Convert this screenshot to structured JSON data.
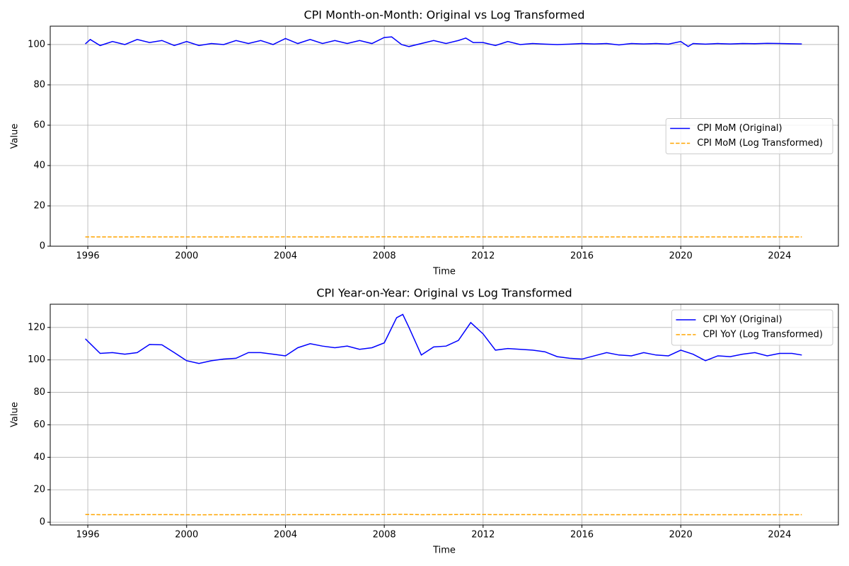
{
  "chart_data": [
    {
      "type": "line",
      "title": "CPI Month-on-Month: Original vs Log Transformed",
      "x_label": "Time",
      "y_label": "Value",
      "x": [
        1995.9,
        1996.1,
        1996.5,
        1997,
        1997.5,
        1998,
        1998.5,
        1999,
        1999.5,
        2000,
        2000.5,
        2001,
        2001.5,
        2002,
        2002.5,
        2003,
        2003.5,
        2004,
        2004.5,
        2005,
        2005.5,
        2006,
        2006.5,
        2007,
        2007.5,
        2008,
        2008.3,
        2008.7,
        2009,
        2009.5,
        2010,
        2010.5,
        2011,
        2011.3,
        2011.6,
        2012,
        2012.5,
        2013,
        2013.5,
        2014,
        2014.5,
        2015,
        2015.5,
        2016,
        2016.5,
        2017,
        2017.5,
        2018,
        2018.5,
        2019,
        2019.5,
        2020,
        2020.3,
        2020.5,
        2021,
        2021.5,
        2022,
        2022.5,
        2023,
        2023.5,
        2024,
        2024.9
      ],
      "series": [
        {
          "name": "CPI MoM (Original)",
          "color": "#0000ff",
          "linestyle": "solid",
          "values": [
            100.3,
            102.5,
            99.5,
            101.5,
            100,
            102.5,
            101,
            102,
            99.5,
            101.5,
            99.5,
            100.5,
            100,
            102,
            100.5,
            102,
            100,
            103,
            100.5,
            102.5,
            100.5,
            102,
            100.5,
            102,
            100.5,
            103.5,
            103.8,
            100,
            99,
            100.5,
            102,
            100.5,
            102,
            103.2,
            101,
            101,
            99.5,
            101.5,
            100,
            100.5,
            100.2,
            100,
            100.2,
            100.5,
            100.3,
            100.5,
            99.8,
            100.5,
            100.3,
            100.5,
            100.2,
            101.5,
            99,
            100.5,
            100.2,
            100.5,
            100.3,
            100.5,
            100.4,
            100.6,
            100.5,
            100.3
          ]
        },
        {
          "name": "CPI MoM (Log Transformed)",
          "color": "#ffa500",
          "linestyle": "dashed",
          "values": [
            4.61,
            4.63,
            4.6,
            4.62,
            4.61,
            4.63,
            4.62,
            4.62,
            4.6,
            4.62,
            4.6,
            4.61,
            4.61,
            4.62,
            4.61,
            4.62,
            4.61,
            4.63,
            4.61,
            4.63,
            4.61,
            4.62,
            4.61,
            4.62,
            4.61,
            4.64,
            4.64,
            4.61,
            4.6,
            4.61,
            4.62,
            4.61,
            4.62,
            4.64,
            4.62,
            4.62,
            4.6,
            4.62,
            4.61,
            4.61,
            4.61,
            4.61,
            4.61,
            4.61,
            4.61,
            4.61,
            4.6,
            4.61,
            4.61,
            4.61,
            4.61,
            4.62,
            4.6,
            4.61,
            4.61,
            4.61,
            4.61,
            4.61,
            4.61,
            4.61,
            4.61,
            4.61
          ]
        }
      ],
      "xlim": [
        1994.48,
        2026.38
      ],
      "xticks": [
        1996,
        2000,
        2004,
        2008,
        2012,
        2016,
        2020,
        2024
      ],
      "ylim": [
        0,
        109.1
      ],
      "yticks": [
        0,
        20,
        40,
        60,
        80,
        100
      ],
      "grid": true,
      "legend": "center right"
    },
    {
      "type": "line",
      "title": "CPI Year-on-Year: Original vs Log Transformed",
      "x_label": "Time",
      "y_label": "Value",
      "x": [
        1995.9,
        1996.5,
        1997,
        1997.5,
        1998,
        1998.5,
        1999,
        1999.5,
        2000,
        2000.5,
        2001,
        2001.5,
        2002,
        2002.5,
        2003,
        2003.5,
        2004,
        2004.5,
        2005,
        2005.5,
        2006,
        2006.5,
        2007,
        2007.5,
        2008,
        2008.5,
        2008.75,
        2009,
        2009.5,
        2010,
        2010.5,
        2011,
        2011.5,
        2012,
        2012.5,
        2013,
        2013.5,
        2014,
        2014.5,
        2015,
        2015.5,
        2016,
        2016.5,
        2017,
        2017.5,
        2018,
        2018.5,
        2019,
        2019.5,
        2020,
        2020.5,
        2021,
        2021.5,
        2022,
        2022.5,
        2023,
        2023.5,
        2024,
        2024.5,
        2024.9
      ],
      "series": [
        {
          "name": "CPI YoY (Original)",
          "color": "#0000ff",
          "linestyle": "solid",
          "values": [
            113,
            104,
            104.5,
            103.5,
            104.5,
            109.5,
            109.3,
            104.5,
            99.5,
            97.8,
            99.5,
            100.5,
            101,
            104.5,
            104.5,
            103.5,
            102.5,
            107.5,
            110,
            108.5,
            107.5,
            108.5,
            106.5,
            107.5,
            110.5,
            126,
            128,
            120,
            103,
            108,
            108.5,
            112,
            123,
            116,
            106,
            107,
            106.5,
            106,
            105,
            102,
            101,
            100.5,
            102.5,
            104.5,
            103,
            102.5,
            104.5,
            103,
            102.5,
            106,
            103.5,
            99.5,
            102.5,
            102,
            103.5,
            104.5,
            102.5,
            104,
            104,
            103
          ]
        },
        {
          "name": "CPI YoY (Log Transformed)",
          "color": "#ffa500",
          "linestyle": "dashed",
          "values": [
            4.73,
            4.64,
            4.65,
            4.64,
            4.65,
            4.7,
            4.69,
            4.65,
            4.6,
            4.58,
            4.6,
            4.61,
            4.62,
            4.65,
            4.65,
            4.64,
            4.63,
            4.68,
            4.7,
            4.69,
            4.68,
            4.69,
            4.67,
            4.68,
            4.71,
            4.84,
            4.85,
            4.79,
            4.63,
            4.68,
            4.69,
            4.72,
            4.81,
            4.75,
            4.66,
            4.67,
            4.67,
            4.66,
            4.65,
            4.62,
            4.62,
            4.61,
            4.63,
            4.65,
            4.63,
            4.63,
            4.65,
            4.63,
            4.63,
            4.66,
            4.64,
            4.6,
            4.63,
            4.62,
            4.64,
            4.65,
            4.63,
            4.64,
            4.64,
            4.63
          ]
        }
      ],
      "xlim": [
        1994.48,
        2026.38
      ],
      "xticks": [
        1996,
        2000,
        2004,
        2008,
        2012,
        2016,
        2020,
        2024
      ],
      "ylim": [
        -1.7,
        134.3
      ],
      "yticks": [
        0,
        20,
        40,
        60,
        80,
        100,
        120
      ],
      "grid": true,
      "legend": "upper right"
    }
  ]
}
